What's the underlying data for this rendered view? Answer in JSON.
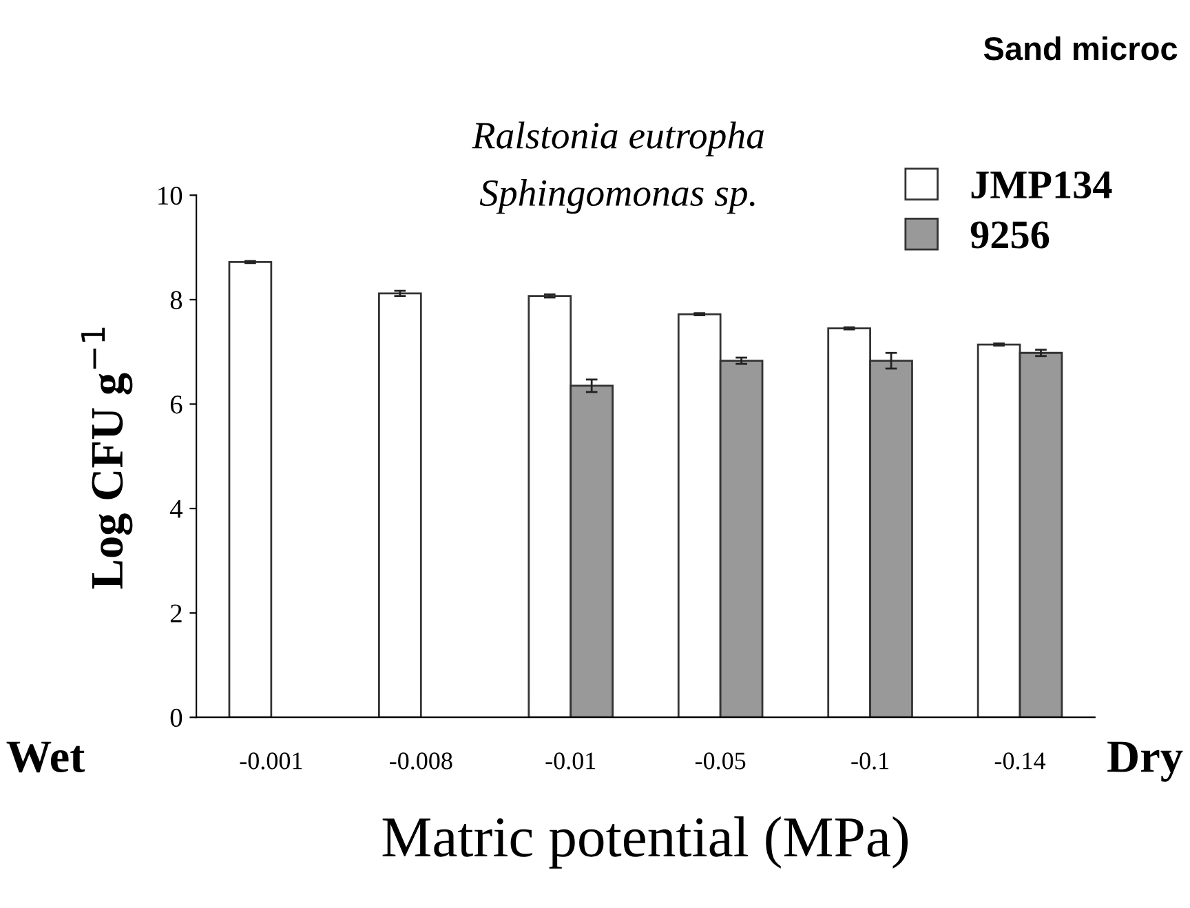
{
  "chart_data": {
    "type": "bar",
    "title": "Sand microc",
    "xlabel": "Matric potential (MPa)",
    "ylabel": "Log CFU g$^{−1}$",
    "categories": [
      "-0.001",
      "-0.008",
      "-0.01",
      "-0.05",
      "-0.1",
      "-0.14"
    ],
    "series": [
      {
        "name": "JMP134",
        "color": "#ffffff",
        "values": [
          8.72,
          8.12,
          8.07,
          7.72,
          7.45,
          7.14
        ],
        "errors": [
          0.02,
          0.05,
          0.03,
          0.02,
          0.02,
          0.02
        ]
      },
      {
        "name": "9256",
        "color": "#999999",
        "values": [
          null,
          null,
          6.35,
          6.83,
          6.83,
          6.98
        ],
        "errors": [
          null,
          null,
          0.12,
          0.06,
          0.15,
          0.06
        ]
      }
    ],
    "annotations": [
      "Ralstonia eutropha",
      "Sphingomonas sp.",
      "Wet",
      "Dry"
    ],
    "ylim": [
      0,
      10
    ],
    "yticks": [
      0,
      2,
      4,
      6,
      8,
      10
    ],
    "grid": false,
    "legend": "top right"
  }
}
